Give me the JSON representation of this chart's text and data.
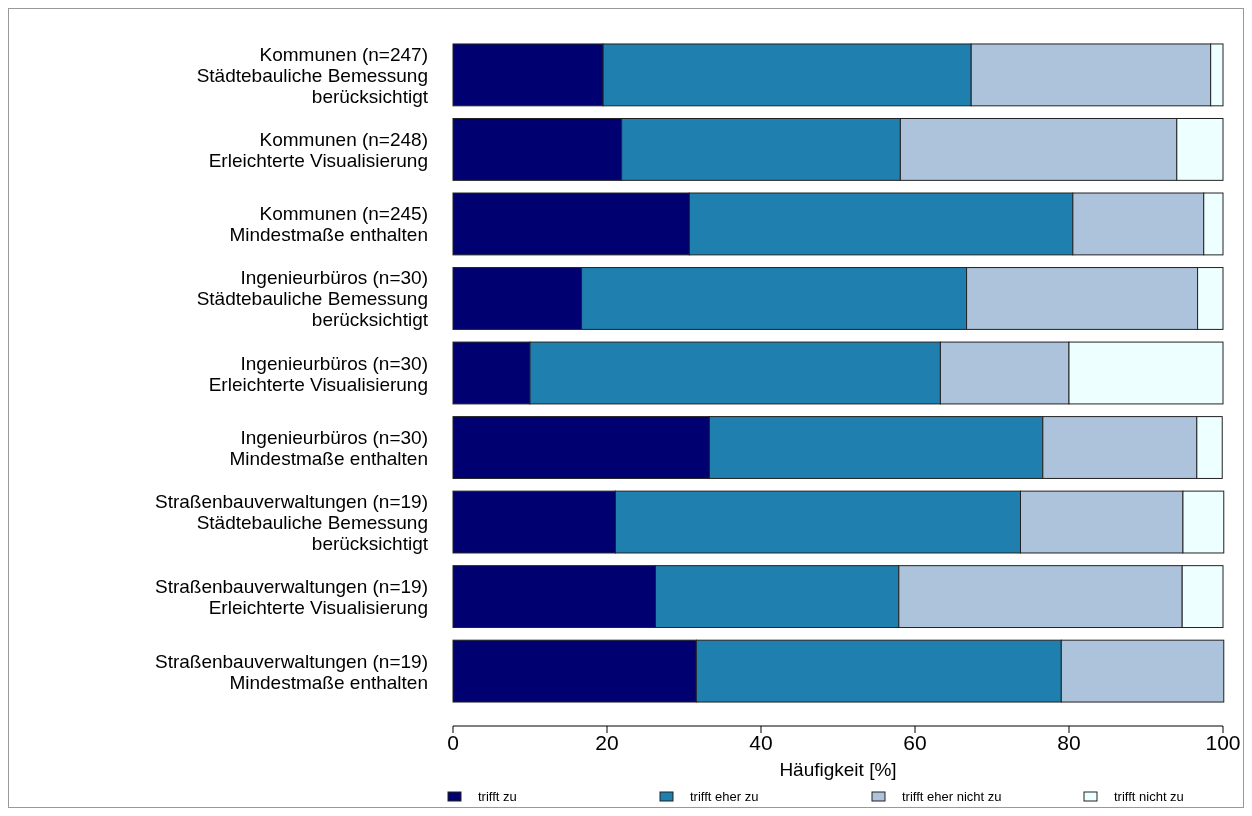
{
  "chart_data": {
    "type": "bar",
    "orientation": "horizontal",
    "stacked": true,
    "categories": [
      "Kommunen (n=247)\nStädtebauliche Bemessung\nberücksichtigt",
      "Kommunen (n=248)\nErleichterte Visualisierung",
      "Kommunen (n=245)\nMindestmaße enthalten",
      "Ingenieurbüros (n=30)\nStädtebauliche Bemessung\nberücksichtigt",
      "Ingenieurbüros (n=30)\nErleichterte Visualisierung",
      "Ingenieurbüros (n=30)\nMindestmaße enthalten",
      "Straßenbauverwaltungen (n=19)\nStädtebauliche Bemessung\nberücksichtigt",
      "Straßenbauverwaltungen (n=19)\nErleichterte Visualisierung",
      "Straßenbauverwaltungen (n=19)\nMindestmaße enthalten"
    ],
    "series": [
      {
        "name": "trifft zu",
        "color": "#000070",
        "values": [
          19.5,
          21.9,
          30.7,
          16.7,
          10.0,
          33.3,
          21.1,
          26.3,
          31.6
        ]
      },
      {
        "name": "trifft eher zu",
        "color": "#1f7fae",
        "values": [
          47.8,
          36.2,
          49.8,
          50.0,
          53.3,
          43.3,
          52.6,
          31.6,
          47.4
        ]
      },
      {
        "name": "trifft eher nicht zu",
        "color": "#adc3dc",
        "values": [
          31.1,
          35.9,
          17.0,
          30.0,
          16.7,
          20.0,
          21.1,
          36.8,
          21.1
        ]
      },
      {
        "name": "trifft nicht zu",
        "color": "#eeffff",
        "values": [
          1.6,
          6.0,
          2.5,
          3.3,
          20.0,
          3.3,
          5.3,
          5.3,
          0
        ]
      }
    ],
    "xlim": [
      0,
      100
    ],
    "xticks": [
      0,
      20,
      40,
      60,
      80,
      100
    ],
    "xlabel": "Häufigkeit [%]",
    "grid": false,
    "legend": "bottom"
  }
}
